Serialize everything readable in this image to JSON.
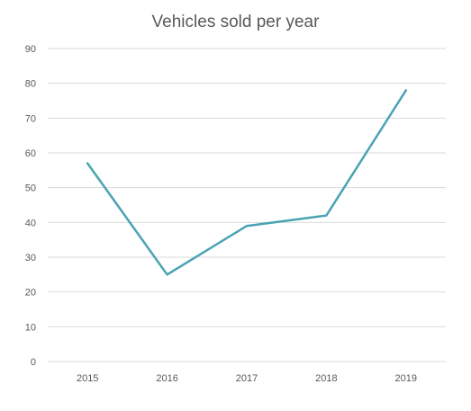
{
  "chart_data": {
    "type": "line",
    "title": "Vehicles sold per year",
    "xlabel": "",
    "ylabel": "",
    "categories": [
      "2015",
      "2016",
      "2017",
      "2018",
      "2019"
    ],
    "series": [
      {
        "values": [
          57,
          25,
          39,
          42,
          78
        ]
      }
    ],
    "ylim": [
      0,
      90
    ],
    "yticks": [
      0,
      10,
      20,
      30,
      40,
      50,
      60,
      70,
      80,
      90
    ],
    "grid": true,
    "legend": "none",
    "line_color": "#4aa3b3",
    "grid_color": "#d9d9d9",
    "text_color": "#595959"
  }
}
